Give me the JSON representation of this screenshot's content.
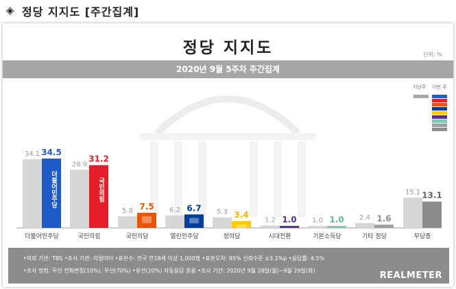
{
  "header": {
    "bullet": "◈",
    "title": "정당 지지도 [주간집계]"
  },
  "chart_data": {
    "type": "bar",
    "title": "정당 지지도",
    "subtitle": "2020년 9월 5주차 주간집계",
    "unit_label": "단위: %",
    "legend": {
      "prev_label": "지난주",
      "curr_label": "이번 주"
    },
    "categories": [
      "더불어민주당",
      "국민의힘",
      "국민의당",
      "열린민주당",
      "정의당",
      "시대전환",
      "기본소득당",
      "기타 정당",
      "무당층"
    ],
    "series": [
      {
        "name": "지난주",
        "values": [
          34.1,
          28.9,
          5.8,
          6.2,
          5.3,
          1.2,
          1.0,
          2.4,
          15.1
        ]
      },
      {
        "name": "이번 주",
        "values": [
          34.5,
          31.2,
          7.5,
          6.7,
          3.4,
          1.0,
          1.0,
          1.6,
          13.1
        ]
      }
    ],
    "prev_labels": [
      "34.1",
      "28.9",
      "5.8",
      "6.2",
      "5.3",
      "1.2",
      "1.0",
      "2.4",
      "15.1"
    ],
    "curr_labels": [
      "34.5",
      "31.2",
      "7.5",
      "6.7",
      "3.4",
      "1.0",
      "1.0",
      "1.6",
      "13.1"
    ],
    "ylim": [
      0,
      40
    ],
    "grid": false
  },
  "colors": {
    "prev": "#d6d6d6",
    "parties": [
      "#1f5bc6",
      "#e61e2b",
      "#ea5504",
      "#003e9b",
      "#ffcc00",
      "#5a2d91",
      "#7ec8b5",
      "#9e9e9e",
      "#8c8c8c"
    ],
    "curr_label": [
      "#1f5bc6",
      "#e61e2b",
      "#ea5504",
      "#003e9b",
      "#f2b800",
      "#5a2d91",
      "#5fb8a0",
      "#8c8c8c",
      "#666666"
    ]
  },
  "bar_marks": [
    "더불어민주당",
    "국민의힘",
    "국민의당",
    "열린민주당",
    "정의당"
  ],
  "footer": {
    "line1": "•의뢰 기관: TBS •조사 기관: 리얼미터 •표본수: 전국 만18세 이상 1,000명 •표본오차: 95% 신뢰수준 ±3.1%p •응답률: 4.5%",
    "line2": "•조사 방법: 무선 전화면접(10%), 무선(70%) •유선(20%) 자동응답 혼용 •조사 기간: 2020년 9월 28일(월)~9월 29일(화)",
    "brand": "REALMETER"
  }
}
